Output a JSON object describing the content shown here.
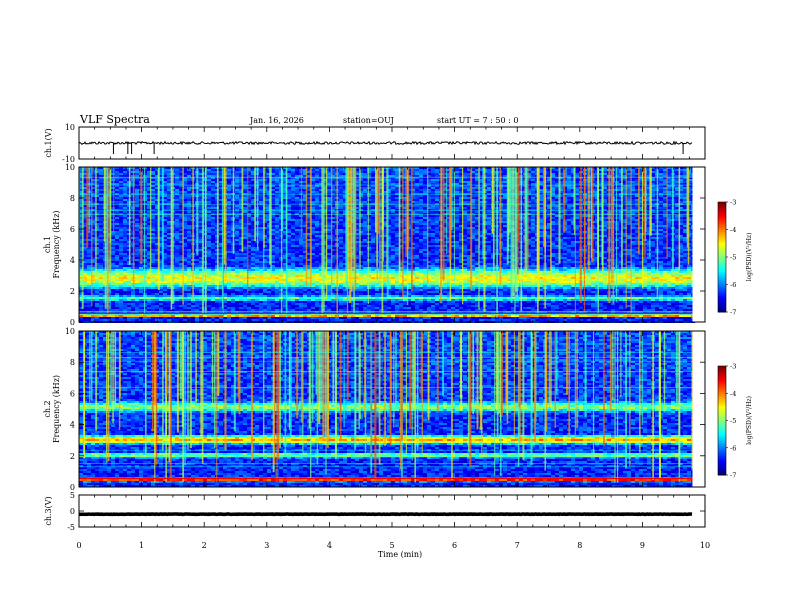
{
  "header": {
    "title": "VLF Spectra",
    "date": "Jan. 16, 2026",
    "station": "station=OUJ",
    "start": "start  UT =   7 : 50 : 0"
  },
  "chart_data": {
    "type": "heatmap",
    "xlabel": "Time  (min)",
    "xlim": [
      0,
      10
    ],
    "xticks": [
      "0",
      "1",
      "2",
      "3",
      "4",
      "5",
      "6",
      "7",
      "8",
      "9",
      "10"
    ],
    "panels": [
      {
        "id": "ch1-waveform",
        "ylabel": "ch.1(V)",
        "ylim": [
          -10,
          10
        ],
        "yticks": [
          "10",
          "-10"
        ],
        "trace_level": 0,
        "kind": "waveform"
      },
      {
        "id": "ch1-spectrogram",
        "ylabel_line1": "ch.1",
        "ylabel_line2": "Frequency  (kHz)",
        "ylim": [
          0,
          10
        ],
        "yticks": [
          "0",
          "2",
          "4",
          "6",
          "8",
          "10"
        ],
        "kind": "spectrogram",
        "emission_bands_khz": [
          {
            "center": 2.9,
            "width": 1.4,
            "level": 0.62
          },
          {
            "center": 1.6,
            "width": 0.4,
            "level": 0.45
          },
          {
            "center": 0.5,
            "width": 0.2,
            "level": 0.9
          }
        ]
      },
      {
        "id": "ch2-spectrogram",
        "ylabel_line1": "ch.2",
        "ylabel_line2": "Frequency  (kHz)",
        "ylim": [
          0,
          10
        ],
        "yticks": [
          "0",
          "2",
          "4",
          "6",
          "8",
          "10"
        ],
        "kind": "spectrogram",
        "emission_bands_khz": [
          {
            "center": 3.1,
            "width": 0.6,
            "level": 0.72
          },
          {
            "center": 5.2,
            "width": 0.8,
            "level": 0.5
          },
          {
            "center": 2.1,
            "width": 0.4,
            "level": 0.5
          },
          {
            "center": 0.5,
            "width": 0.2,
            "level": 0.85
          }
        ]
      },
      {
        "id": "ch3-waveform",
        "ylabel": "ch.3(V)",
        "ylim": [
          -5,
          5
        ],
        "yticks": [
          "5",
          "0",
          "-5"
        ],
        "trace_level": -1,
        "kind": "waveform"
      }
    ],
    "colorbar": {
      "label": "log(PSD)(V²/Hz)",
      "range": [
        -7,
        -3
      ],
      "ticks": [
        "-3",
        "-4",
        "-5",
        "-6",
        "-7"
      ],
      "colormap": [
        "#00007f",
        "#0000ff",
        "#0080ff",
        "#00ffff",
        "#80ff80",
        "#ffff00",
        "#ff8000",
        "#ff0000",
        "#7f0000"
      ]
    }
  }
}
